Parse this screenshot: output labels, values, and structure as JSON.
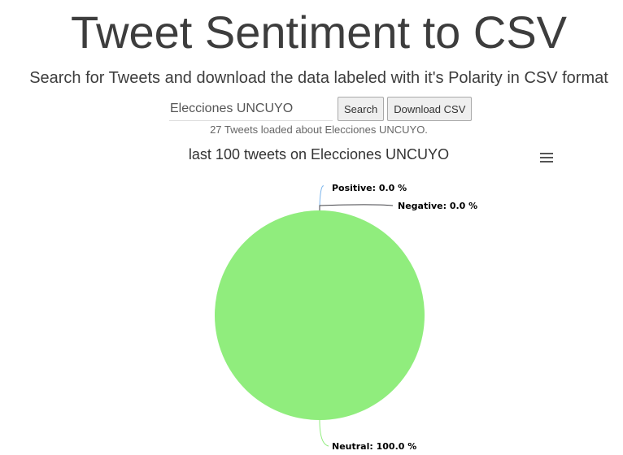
{
  "header": {
    "title": "Tweet Sentiment to CSV",
    "subtitle": "Search for Tweets and download the data labeled with it's Polarity in CSV format"
  },
  "search": {
    "value": "Elecciones UNCUYO",
    "placeholder": "",
    "search_label": "Search",
    "download_label": "Download CSV"
  },
  "status": {
    "text": "27 Tweets loaded about Elecciones UNCUYO."
  },
  "chart": {
    "menu_icon": "hamburger-menu-icon"
  },
  "chart_data": {
    "type": "pie",
    "title": "last 100 tweets on Elecciones UNCUYO",
    "slices": [
      {
        "label": "Positive: 0.0 %",
        "name": "Positive",
        "value": 0.0,
        "color": "#7cb5ec"
      },
      {
        "label": "Negative: 0.0 %",
        "name": "Negative",
        "value": 0.0,
        "color": "#434348"
      },
      {
        "label": "Neutral: 100.0 %",
        "name": "Neutral",
        "value": 100.0,
        "color": "#90ed7d"
      }
    ]
  }
}
